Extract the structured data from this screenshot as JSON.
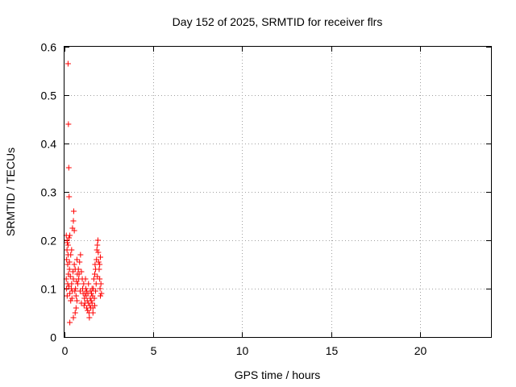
{
  "chart_data": {
    "type": "scatter",
    "title": "Day 152 of 2025, SRMTID for receiver flrs",
    "xlabel": "GPS time / hours",
    "ylabel": "SRMTID / TECUs",
    "xlim": [
      0,
      24
    ],
    "ylim": [
      0,
      0.6
    ],
    "x_ticks": [
      0,
      5,
      10,
      15,
      20
    ],
    "y_ticks": [
      0,
      0.1,
      0.2,
      0.3,
      0.4,
      0.5,
      0.6
    ],
    "x_tick_labels": [
      "0",
      "5",
      "10",
      "15",
      "20"
    ],
    "y_tick_labels": [
      "0",
      "0.1",
      "0.2",
      "0.3",
      "0.4",
      "0.5",
      "0.6"
    ],
    "grid": true,
    "marker": "+",
    "color": "#ff0000",
    "series": [
      {
        "points": [
          [
            0.2,
            0.565
          ],
          [
            0.22,
            0.44
          ],
          [
            0.24,
            0.35
          ],
          [
            0.26,
            0.29
          ],
          [
            0.1,
            0.21
          ],
          [
            0.15,
            0.2
          ],
          [
            0.2,
            0.19
          ],
          [
            0.25,
            0.205
          ],
          [
            0.3,
            0.21
          ],
          [
            0.12,
            0.16
          ],
          [
            0.18,
            0.15
          ],
          [
            0.22,
            0.13
          ],
          [
            0.28,
            0.155
          ],
          [
            0.35,
            0.17
          ],
          [
            0.4,
            0.18
          ],
          [
            0.45,
            0.225
          ],
          [
            0.5,
            0.24
          ],
          [
            0.52,
            0.26
          ],
          [
            0.55,
            0.22
          ],
          [
            0.1,
            0.12
          ],
          [
            0.12,
            0.1
          ],
          [
            0.15,
            0.085
          ],
          [
            0.18,
            0.11
          ],
          [
            0.25,
            0.105
          ],
          [
            0.3,
            0.09
          ],
          [
            0.35,
            0.075
          ],
          [
            0.38,
            0.1
          ],
          [
            0.42,
            0.08
          ],
          [
            0.45,
            0.095
          ],
          [
            0.5,
            0.12
          ],
          [
            0.55,
            0.15
          ],
          [
            0.6,
            0.14
          ],
          [
            0.62,
            0.1
          ],
          [
            0.65,
            0.085
          ],
          [
            0.7,
            0.16
          ],
          [
            0.72,
            0.13
          ],
          [
            0.75,
            0.11
          ],
          [
            0.78,
            0.14
          ],
          [
            0.8,
            0.12
          ],
          [
            0.3,
            0.03
          ],
          [
            0.5,
            0.04
          ],
          [
            0.6,
            0.05
          ],
          [
            0.65,
            0.06
          ],
          [
            0.7,
            0.075
          ],
          [
            0.85,
            0.155
          ],
          [
            0.9,
            0.17
          ],
          [
            0.95,
            0.135
          ],
          [
            1.0,
            0.12
          ],
          [
            1.02,
            0.1
          ],
          [
            1.05,
            0.09
          ],
          [
            1.08,
            0.11
          ],
          [
            1.1,
            0.065
          ],
          [
            1.12,
            0.08
          ],
          [
            1.15,
            0.07
          ],
          [
            1.18,
            0.12
          ],
          [
            1.2,
            0.1
          ],
          [
            1.22,
            0.085
          ],
          [
            1.25,
            0.06
          ],
          [
            1.28,
            0.075
          ],
          [
            1.3,
            0.055
          ],
          [
            1.32,
            0.09
          ],
          [
            1.35,
            0.07
          ],
          [
            1.38,
            0.05
          ],
          [
            1.4,
            0.04
          ],
          [
            1.42,
            0.065
          ],
          [
            1.45,
            0.08
          ],
          [
            1.48,
            0.06
          ],
          [
            1.5,
            0.075
          ],
          [
            1.52,
            0.09
          ],
          [
            1.55,
            0.07
          ],
          [
            1.58,
            0.085
          ],
          [
            1.6,
            0.06
          ],
          [
            1.62,
            0.1
          ],
          [
            1.65,
            0.12
          ],
          [
            1.68,
            0.08
          ],
          [
            1.7,
            0.13
          ],
          [
            1.72,
            0.15
          ],
          [
            1.75,
            0.14
          ],
          [
            1.78,
            0.11
          ],
          [
            1.8,
            0.16
          ],
          [
            1.82,
            0.18
          ],
          [
            1.85,
            0.19
          ],
          [
            1.88,
            0.2
          ],
          [
            1.9,
            0.175
          ],
          [
            1.92,
            0.155
          ],
          [
            1.95,
            0.14
          ],
          [
            1.98,
            0.12
          ],
          [
            2.0,
            0.1
          ],
          [
            2.02,
            0.085
          ],
          [
            2.05,
            0.11
          ],
          [
            2.08,
            0.09
          ],
          [
            1.6,
            0.05
          ],
          [
            1.45,
            0.095
          ],
          [
            1.35,
            0.11
          ],
          [
            0.95,
            0.07
          ],
          [
            0.88,
            0.095
          ],
          [
            0.82,
            0.13
          ],
          [
            0.68,
            0.115
          ],
          [
            0.58,
            0.095
          ],
          [
            0.48,
            0.135
          ],
          [
            0.4,
            0.11
          ],
          [
            0.33,
            0.125
          ],
          [
            0.28,
            0.14
          ],
          [
            0.2,
            0.17
          ],
          [
            0.16,
            0.195
          ],
          [
            0.14,
            0.18
          ],
          [
            1.25,
            0.095
          ],
          [
            1.15,
            0.09
          ],
          [
            1.75,
            0.095
          ],
          [
            1.85,
            0.125
          ],
          [
            2.02,
            0.165
          ],
          [
            1.98,
            0.15
          ],
          [
            1.7,
            0.065
          ],
          [
            1.55,
            0.1
          ]
        ]
      }
    ]
  }
}
